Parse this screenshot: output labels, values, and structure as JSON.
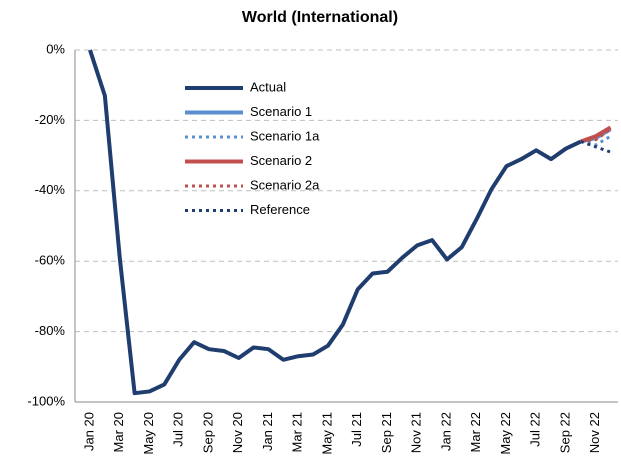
{
  "chart_data": {
    "type": "line",
    "title": "World (International)",
    "categories": [
      "Jan 20",
      null,
      "Mar 20",
      null,
      "May 20",
      null,
      "Jul 20",
      null,
      "Sep 20",
      null,
      "Nov 20",
      null,
      "Jan 21",
      null,
      "Mar 21",
      null,
      "May 21",
      null,
      "Jul 21",
      null,
      "Sep 21",
      null,
      "Nov 21",
      null,
      "Jan 22",
      null,
      "Mar 22",
      null,
      "May 22",
      null,
      "Jul 22",
      null,
      "Sep 22",
      null,
      "Nov 22",
      null
    ],
    "series": [
      {
        "name": "Actual",
        "color": "#1f3d6e",
        "style": "solid",
        "values": [
          0,
          -13,
          -59,
          -97.5,
          -97,
          -95,
          -88,
          -83,
          -85,
          -85.5,
          -87.5,
          -84.5,
          -85,
          -88,
          -87,
          -86.5,
          -84,
          -78,
          -68,
          -63.5,
          -63,
          -59,
          -55.5,
          -54,
          -59.5,
          -56,
          -48,
          -39.5,
          -33,
          -31,
          -28.5,
          -31,
          -28,
          -26,
          null,
          null
        ]
      },
      {
        "name": "Scenario 1",
        "color": "#5b8fd0",
        "style": "solid",
        "values": [
          null,
          null,
          null,
          null,
          null,
          null,
          null,
          null,
          null,
          null,
          null,
          null,
          null,
          null,
          null,
          null,
          null,
          null,
          null,
          null,
          null,
          null,
          null,
          null,
          null,
          null,
          null,
          null,
          null,
          null,
          null,
          null,
          null,
          -26,
          -25,
          -22.5
        ]
      },
      {
        "name": "Scenario 1a",
        "color": "#5b8fd0",
        "style": "dotted",
        "values": [
          null,
          null,
          null,
          null,
          null,
          null,
          null,
          null,
          null,
          null,
          null,
          null,
          null,
          null,
          null,
          null,
          null,
          null,
          null,
          null,
          null,
          null,
          null,
          null,
          null,
          null,
          null,
          null,
          null,
          null,
          null,
          null,
          null,
          -26,
          -27,
          -24.5
        ]
      },
      {
        "name": "Scenario 2",
        "color": "#c0504d",
        "style": "solid",
        "values": [
          null,
          null,
          null,
          null,
          null,
          null,
          null,
          null,
          null,
          null,
          null,
          null,
          null,
          null,
          null,
          null,
          null,
          null,
          null,
          null,
          null,
          null,
          null,
          null,
          null,
          null,
          null,
          null,
          null,
          null,
          null,
          null,
          null,
          -26,
          -24.5,
          -22
        ]
      },
      {
        "name": "Scenario 2a",
        "color": "#c0504d",
        "style": "dotted",
        "values": [
          null,
          null,
          null,
          null,
          null,
          null,
          null,
          null,
          null,
          null,
          null,
          null,
          null,
          null,
          null,
          null,
          null,
          null,
          null,
          null,
          null,
          null,
          null,
          null,
          null,
          null,
          null,
          null,
          null,
          null,
          null,
          null,
          null,
          -26,
          -25.5,
          -22.5
        ]
      },
      {
        "name": "Reference",
        "color": "#1f3d6e",
        "style": "dotted",
        "values": [
          null,
          null,
          null,
          null,
          null,
          null,
          null,
          null,
          null,
          null,
          null,
          null,
          null,
          null,
          null,
          null,
          null,
          null,
          null,
          null,
          null,
          null,
          null,
          null,
          null,
          null,
          null,
          null,
          null,
          null,
          null,
          null,
          null,
          -26,
          -27.5,
          -29
        ]
      }
    ],
    "ylim": [
      -100,
      0
    ],
    "yticks": [
      {
        "value": -100,
        "label": "-100%"
      },
      {
        "value": -80,
        "label": "-80%"
      },
      {
        "value": -60,
        "label": "-60%"
      },
      {
        "value": -40,
        "label": "-40%"
      },
      {
        "value": -20,
        "label": "-20%"
      },
      {
        "value": 0,
        "label": "0%"
      }
    ],
    "grid": true,
    "legend": "upper left"
  }
}
